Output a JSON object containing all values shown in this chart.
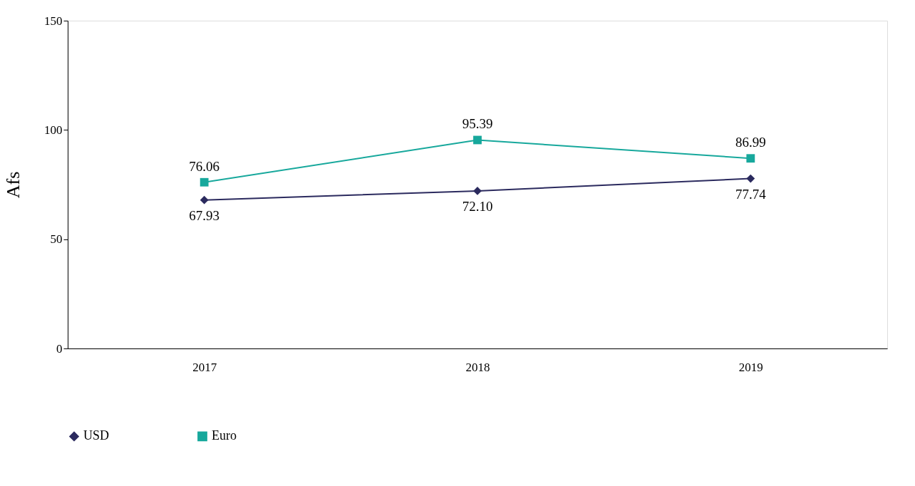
{
  "chart_data": {
    "type": "line",
    "ylabel": "Afs",
    "categories": [
      "2017",
      "2018",
      "2019"
    ],
    "series": [
      {
        "name": "USD",
        "color": "#2b2a5e",
        "marker": "diamond",
        "values": [
          67.93,
          72.1,
          77.74
        ],
        "value_labels": [
          "67.93",
          "72.10",
          "77.74"
        ]
      },
      {
        "name": "Euro",
        "color": "#17a89c",
        "marker": "square",
        "values": [
          76.06,
          95.39,
          86.99
        ],
        "value_labels": [
          "76.06",
          "95.39",
          "86.99"
        ]
      }
    ],
    "ylim": [
      0,
      150
    ],
    "yticks": [
      0,
      50,
      100,
      150
    ],
    "grid": false,
    "legend": "bottom",
    "line_style": "solid"
  }
}
